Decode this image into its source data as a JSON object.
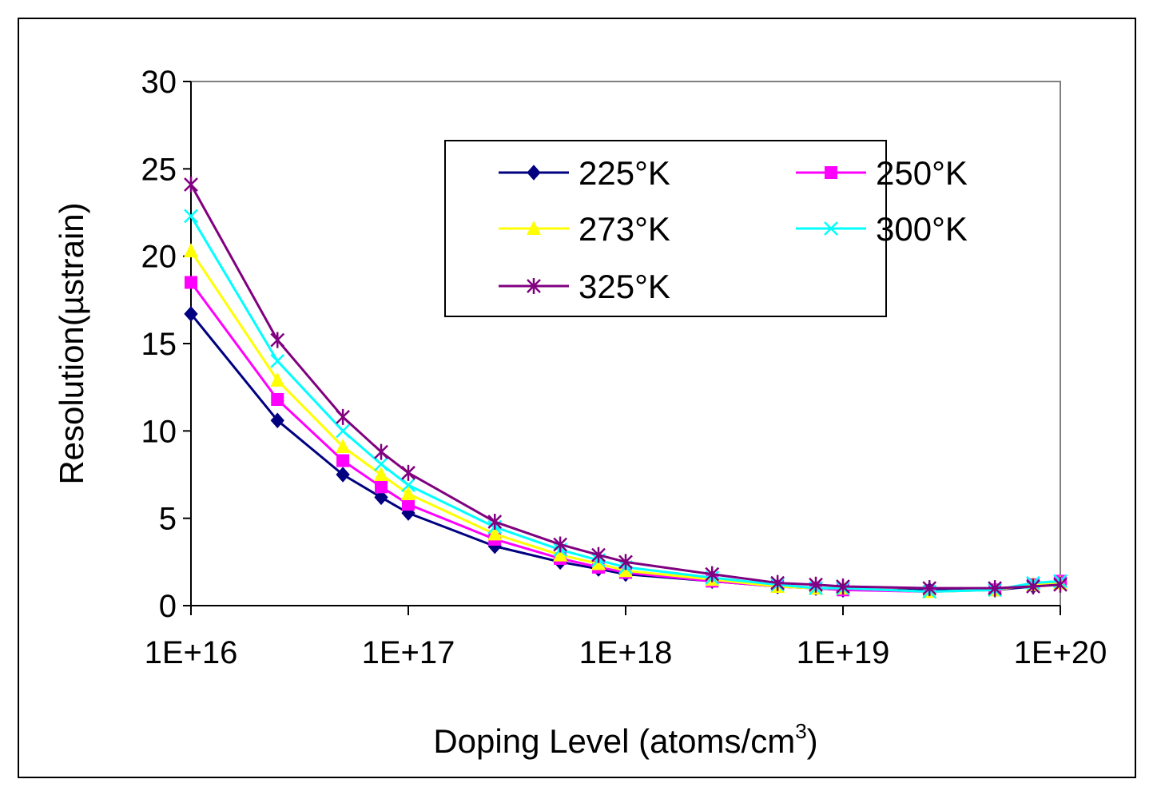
{
  "chart_data": {
    "type": "line",
    "title": "",
    "xlabel": "Doping Level (atoms/cm",
    "xlabel_superscript": "3",
    "xlabel_suffix": ")",
    "ylabel": "Resolution(µstrain)",
    "xscale": "log",
    "xlim": [
      1e+16,
      1e+20
    ],
    "ylim": [
      0,
      30
    ],
    "x_ticks": [
      1e+16,
      1e+17,
      1e+18,
      1e+19,
      1e+20
    ],
    "x_tick_labels": [
      "1E+16",
      "1E+17",
      "1E+18",
      "1E+19",
      "1E+20"
    ],
    "y_ticks": [
      0,
      5,
      10,
      15,
      20,
      25,
      30
    ],
    "y_tick_labels": [
      "0",
      "5",
      "10",
      "15",
      "20",
      "25",
      "30"
    ],
    "legend_position": "top-right",
    "x": [
      1e+16,
      2.5e+16,
      5e+16,
      7.5e+16,
      1e+17,
      2.5e+17,
      5e+17,
      7.5e+17,
      1e+18,
      2.5e+18,
      5e+18,
      7.5e+18,
      1e+19,
      2.5e+19,
      5e+19,
      7.5e+19,
      1e+20
    ],
    "series": [
      {
        "name": "225°K",
        "label": "225K",
        "color": "#000080",
        "marker": "diamond",
        "values": [
          16.7,
          10.6,
          7.5,
          6.2,
          5.3,
          3.4,
          2.5,
          2.1,
          1.8,
          1.4,
          1.1,
          1.0,
          0.9,
          0.9,
          0.9,
          1.1,
          1.3
        ]
      },
      {
        "name": "250°K",
        "label": "250K",
        "color": "#ff00ff",
        "marker": "square",
        "values": [
          18.5,
          11.8,
          8.3,
          6.8,
          5.8,
          3.8,
          2.7,
          2.2,
          1.9,
          1.4,
          1.1,
          1.0,
          0.9,
          0.8,
          0.9,
          1.2,
          1.4
        ]
      },
      {
        "name": "273°K",
        "label": "273K",
        "color": "#ffff00",
        "marker": "triangle",
        "values": [
          20.3,
          12.9,
          9.1,
          7.5,
          6.4,
          4.1,
          2.9,
          2.4,
          2.0,
          1.5,
          1.1,
          1.0,
          1.0,
          0.8,
          0.9,
          1.2,
          1.3
        ]
      },
      {
        "name": "300°K",
        "label": "300K",
        "color": "#00ffff",
        "marker": "x",
        "values": [
          22.3,
          14.0,
          10.0,
          8.1,
          6.9,
          4.5,
          3.2,
          2.6,
          2.2,
          1.6,
          1.2,
          1.0,
          1.0,
          0.8,
          0.9,
          1.3,
          1.4
        ]
      },
      {
        "name": "325°K",
        "label": "325K",
        "color": "#800080",
        "marker": "star",
        "values": [
          24.1,
          15.2,
          10.8,
          8.8,
          7.6,
          4.8,
          3.5,
          2.9,
          2.5,
          1.8,
          1.3,
          1.2,
          1.1,
          1.0,
          1.0,
          1.1,
          1.2
        ]
      }
    ]
  }
}
